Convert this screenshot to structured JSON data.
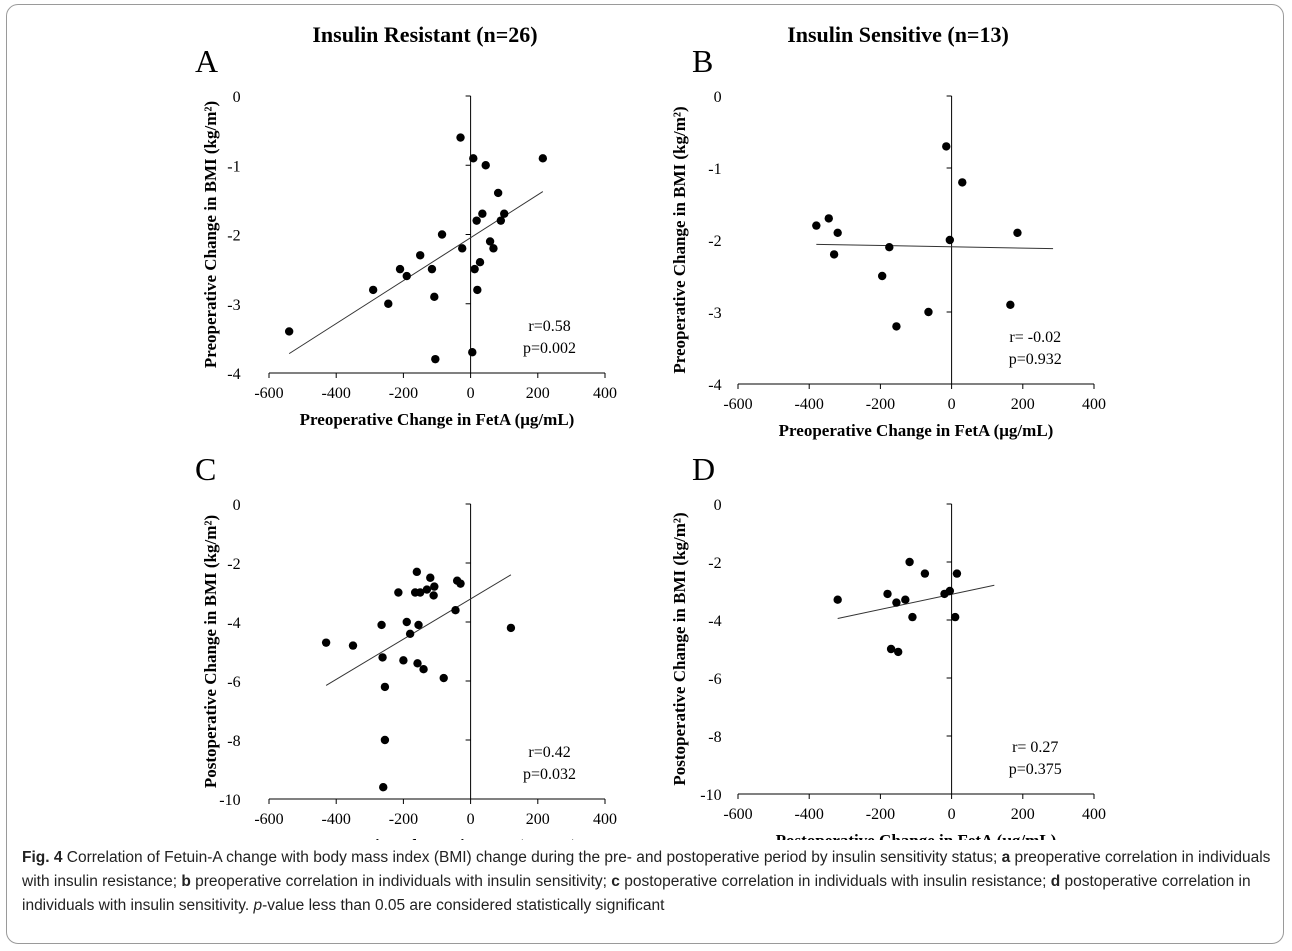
{
  "headers": {
    "left": "Insulin Resistant (n=26)",
    "right": "Insulin Sensitive (n=13)"
  },
  "colors": {
    "axis": "#000000",
    "point": "#000000",
    "trend": "#333333",
    "text": "#000000"
  },
  "chart_data": [
    {
      "id": "A",
      "type": "scatter",
      "panel_letter": "A",
      "xlabel": "Preoperative Change in FetA (μg/mL)",
      "ylabel": "Preoperative Change in BMI (kg/m²)",
      "xlim": [
        -600,
        400
      ],
      "ylim": [
        -4,
        0
      ],
      "xticks": [
        -600,
        -400,
        -200,
        0,
        200,
        400
      ],
      "yticks": [
        0,
        -1,
        -2,
        -3,
        -4
      ],
      "points": [
        [
          -540,
          -3.4
        ],
        [
          -290,
          -2.8
        ],
        [
          -245,
          -3.0
        ],
        [
          -210,
          -2.5
        ],
        [
          -190,
          -2.6
        ],
        [
          -150,
          -2.3
        ],
        [
          -115,
          -2.5
        ],
        [
          -108,
          -2.9
        ],
        [
          -105,
          -3.8
        ],
        [
          -85,
          -2.0
        ],
        [
          -30,
          -0.6
        ],
        [
          -25,
          -2.2
        ],
        [
          5,
          -3.7
        ],
        [
          8,
          -0.9
        ],
        [
          12,
          -2.5
        ],
        [
          18,
          -1.8
        ],
        [
          20,
          -2.8
        ],
        [
          28,
          -2.4
        ],
        [
          35,
          -1.7
        ],
        [
          45,
          -1.0
        ],
        [
          58,
          -2.1
        ],
        [
          68,
          -2.2
        ],
        [
          82,
          -1.4
        ],
        [
          90,
          -1.8
        ],
        [
          100,
          -1.7
        ],
        [
          215,
          -0.9
        ]
      ],
      "trend": [
        [
          -540,
          -3.72
        ],
        [
          215,
          -1.38
        ]
      ],
      "stats": {
        "r": "r=0.58",
        "p": "p=0.002"
      }
    },
    {
      "id": "B",
      "type": "scatter",
      "panel_letter": "B",
      "xlabel": "Preoperative Change in FetA (μg/mL)",
      "ylabel": "Preoperative Change in BMI (kg/m²)",
      "xlim": [
        -600,
        400
      ],
      "ylim": [
        -4,
        0
      ],
      "xticks": [
        -600,
        -400,
        -200,
        0,
        200,
        400
      ],
      "yticks": [
        0,
        -1,
        -2,
        -3,
        -4
      ],
      "points": [
        [
          -380,
          -1.8
        ],
        [
          -345,
          -1.7
        ],
        [
          -330,
          -2.2
        ],
        [
          -320,
          -1.9
        ],
        [
          -195,
          -2.5
        ],
        [
          -175,
          -2.1
        ],
        [
          -155,
          -3.2
        ],
        [
          -65,
          -3.0
        ],
        [
          -15,
          -0.7
        ],
        [
          -5,
          -2.0
        ],
        [
          30,
          -1.2
        ],
        [
          165,
          -2.9
        ],
        [
          185,
          -1.9
        ]
      ],
      "trend": [
        [
          -380,
          -2.06
        ],
        [
          285,
          -2.12
        ]
      ],
      "stats": {
        "r": "r= -0.02",
        "p": "p=0.932"
      }
    },
    {
      "id": "C",
      "type": "scatter",
      "panel_letter": "C",
      "xlabel": "Postoperative Change in FetA (μg/mL)",
      "ylabel": "Postoperative Change in BMI (kg/m²)",
      "xlim": [
        -600,
        400
      ],
      "ylim": [
        -10,
        0
      ],
      "xticks": [
        -600,
        -400,
        -200,
        0,
        200,
        400
      ],
      "yticks": [
        0,
        -2,
        -4,
        -6,
        -8,
        -10
      ],
      "points": [
        [
          -430,
          -4.7
        ],
        [
          -350,
          -4.8
        ],
        [
          -265,
          -4.1
        ],
        [
          -262,
          -5.2
        ],
        [
          -260,
          -9.6
        ],
        [
          -255,
          -8.0
        ],
        [
          -255,
          -6.2
        ],
        [
          -215,
          -3.0
        ],
        [
          -200,
          -5.3
        ],
        [
          -190,
          -4.0
        ],
        [
          -180,
          -4.4
        ],
        [
          -165,
          -3.0
        ],
        [
          -160,
          -2.3
        ],
        [
          -158,
          -5.4
        ],
        [
          -155,
          -4.1
        ],
        [
          -150,
          -3.0
        ],
        [
          -140,
          -5.6
        ],
        [
          -130,
          -2.9
        ],
        [
          -120,
          -2.5
        ],
        [
          -110,
          -3.1
        ],
        [
          -108,
          -2.8
        ],
        [
          -80,
          -5.9
        ],
        [
          -45,
          -3.6
        ],
        [
          -40,
          -2.6
        ],
        [
          -30,
          -2.7
        ],
        [
          120,
          -4.2
        ]
      ],
      "trend": [
        [
          -430,
          -6.15
        ],
        [
          120,
          -2.4
        ]
      ],
      "stats": {
        "r": "r=0.42",
        "p": "p=0.032"
      }
    },
    {
      "id": "D",
      "type": "scatter",
      "panel_letter": "D",
      "xlabel": "Postoperative Change in FetA (μg/mL)",
      "ylabel": "Postoperative Change in BMI (kg/m²)",
      "xlim": [
        -600,
        400
      ],
      "ylim": [
        -10,
        0
      ],
      "xticks": [
        -600,
        -400,
        -200,
        0,
        200,
        400
      ],
      "yticks": [
        0,
        -2,
        -4,
        -6,
        -8,
        -10
      ],
      "points": [
        [
          -320,
          -3.3
        ],
        [
          -180,
          -3.1
        ],
        [
          -170,
          -5.0
        ],
        [
          -155,
          -3.4
        ],
        [
          -150,
          -5.1
        ],
        [
          -130,
          -3.3
        ],
        [
          -118,
          -2.0
        ],
        [
          -110,
          -3.9
        ],
        [
          -75,
          -2.4
        ],
        [
          -20,
          -3.1
        ],
        [
          -5,
          -3.0
        ],
        [
          10,
          -3.9
        ],
        [
          15,
          -2.4
        ]
      ],
      "trend": [
        [
          -320,
          -3.95
        ],
        [
          120,
          -2.8
        ]
      ],
      "stats": {
        "r": "r= 0.27",
        "p": "p=0.375"
      }
    }
  ],
  "caption": {
    "fig_label": "Fig. 4",
    "intro": " Correlation of Fetuin-A change with body mass index (BMI) change during the pre- and postoperative period by insulin sensitivity status; ",
    "a_label": "a",
    "a_text": " preoperative correlation in individuals with insulin resistance; ",
    "b_label": "b",
    "b_text": " preoperative correlation in individuals with insulin sensitivity; ",
    "c_label": "c",
    "c_text": " postoperative correlation in individuals with insulin resistance; ",
    "d_label": "d",
    "d_text": " postoperative correlation in individuals with insulin sensitivity. ",
    "p_label": "p",
    "p_text": "-value less than 0.05 are considered statistically significant"
  }
}
